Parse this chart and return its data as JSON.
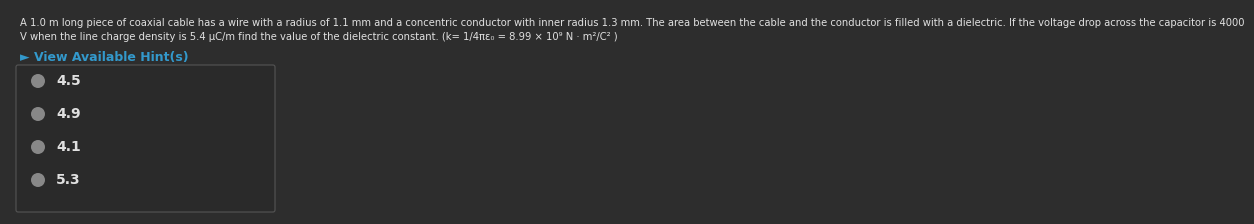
{
  "background_color": "#2d2d2d",
  "text_color": "#e0e0e0",
  "question_text_line1": "A 1.0 m long piece of coaxial cable has a wire with a radius of 1.1 mm and a concentric conductor with inner radius 1.3 mm. The area between the cable and the conductor is filled with a dielectric. If the voltage drop across the capacitor is 4000",
  "question_text_line2": "V when the line charge density is 5.4 μC/m find the value of the dielectric constant. (k= 1/4πε₀ = 8.99 × 10⁹ N · m²/C² )",
  "hint_text": "► View Available Hint(s)",
  "hint_color": "#3399cc",
  "options": [
    "4.5",
    "4.9",
    "4.1",
    "5.3"
  ],
  "option_color": "#e0e0e0",
  "radio_fill_color": "#888888",
  "radio_edge_color": "#888888",
  "box_bg_color": "#2a2a2a",
  "box_edge_color": "#555555",
  "font_size_question": 7.2,
  "font_size_options": 10,
  "font_size_hint": 9
}
